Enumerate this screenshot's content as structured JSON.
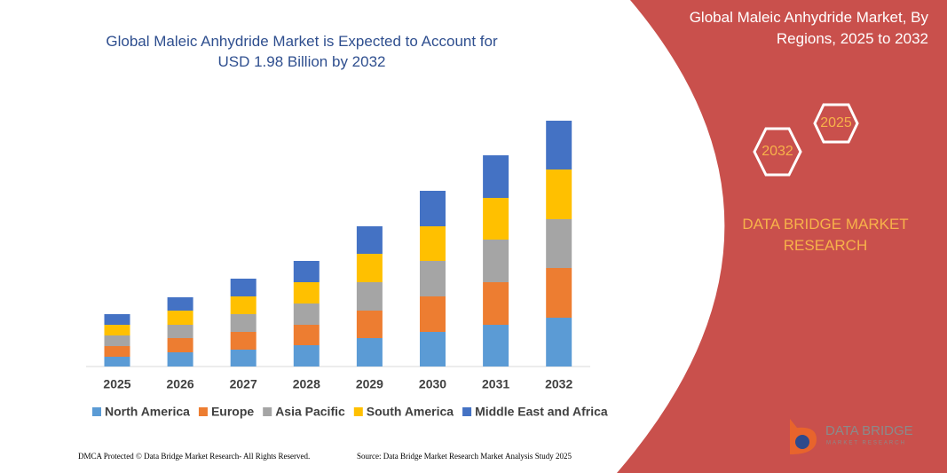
{
  "chart_data": {
    "type": "bar",
    "stacked": true,
    "title": "Global Maleic Anhydride Market is Expected to Account for USD 1.98 Billion by 2032",
    "categories": [
      "2025",
      "2026",
      "2027",
      "2028",
      "2029",
      "2030",
      "2031",
      "2032"
    ],
    "series": [
      {
        "name": "North America",
        "color": "#5b9bd5",
        "values": [
          11,
          16,
          19,
          24,
          32,
          39,
          47,
          55
        ]
      },
      {
        "name": "Europe",
        "color": "#ed7d31",
        "values": [
          12,
          16,
          20,
          23,
          31,
          40,
          48,
          56
        ]
      },
      {
        "name": "Asia Pacific",
        "color": "#a5a5a5",
        "values": [
          12,
          15,
          20,
          24,
          32,
          40,
          48,
          55
        ]
      },
      {
        "name": "South America",
        "color": "#ffc000",
        "values": [
          12,
          16,
          20,
          24,
          32,
          39,
          47,
          56
        ]
      },
      {
        "name": "Middle East and Africa",
        "color": "#4472c4",
        "values": [
          12,
          15,
          20,
          24,
          31,
          40,
          48,
          55
        ]
      }
    ]
  },
  "panel": {
    "title": "Global Maleic Anhydride Market, By Regions, 2025 to 2032",
    "hexagons": [
      "2025",
      "2032"
    ],
    "brand": "DATA BRIDGE MARKET RESEARCH"
  },
  "logo": {
    "name": "DATA BRIDGE",
    "tagline": "MARKET RESEARCH"
  },
  "footer": {
    "left": "DMCA Protected © Data Bridge Market Research- All Rights Reserved.",
    "right": "Source: Data Bridge Market Research Market Analysis Study 2025"
  }
}
